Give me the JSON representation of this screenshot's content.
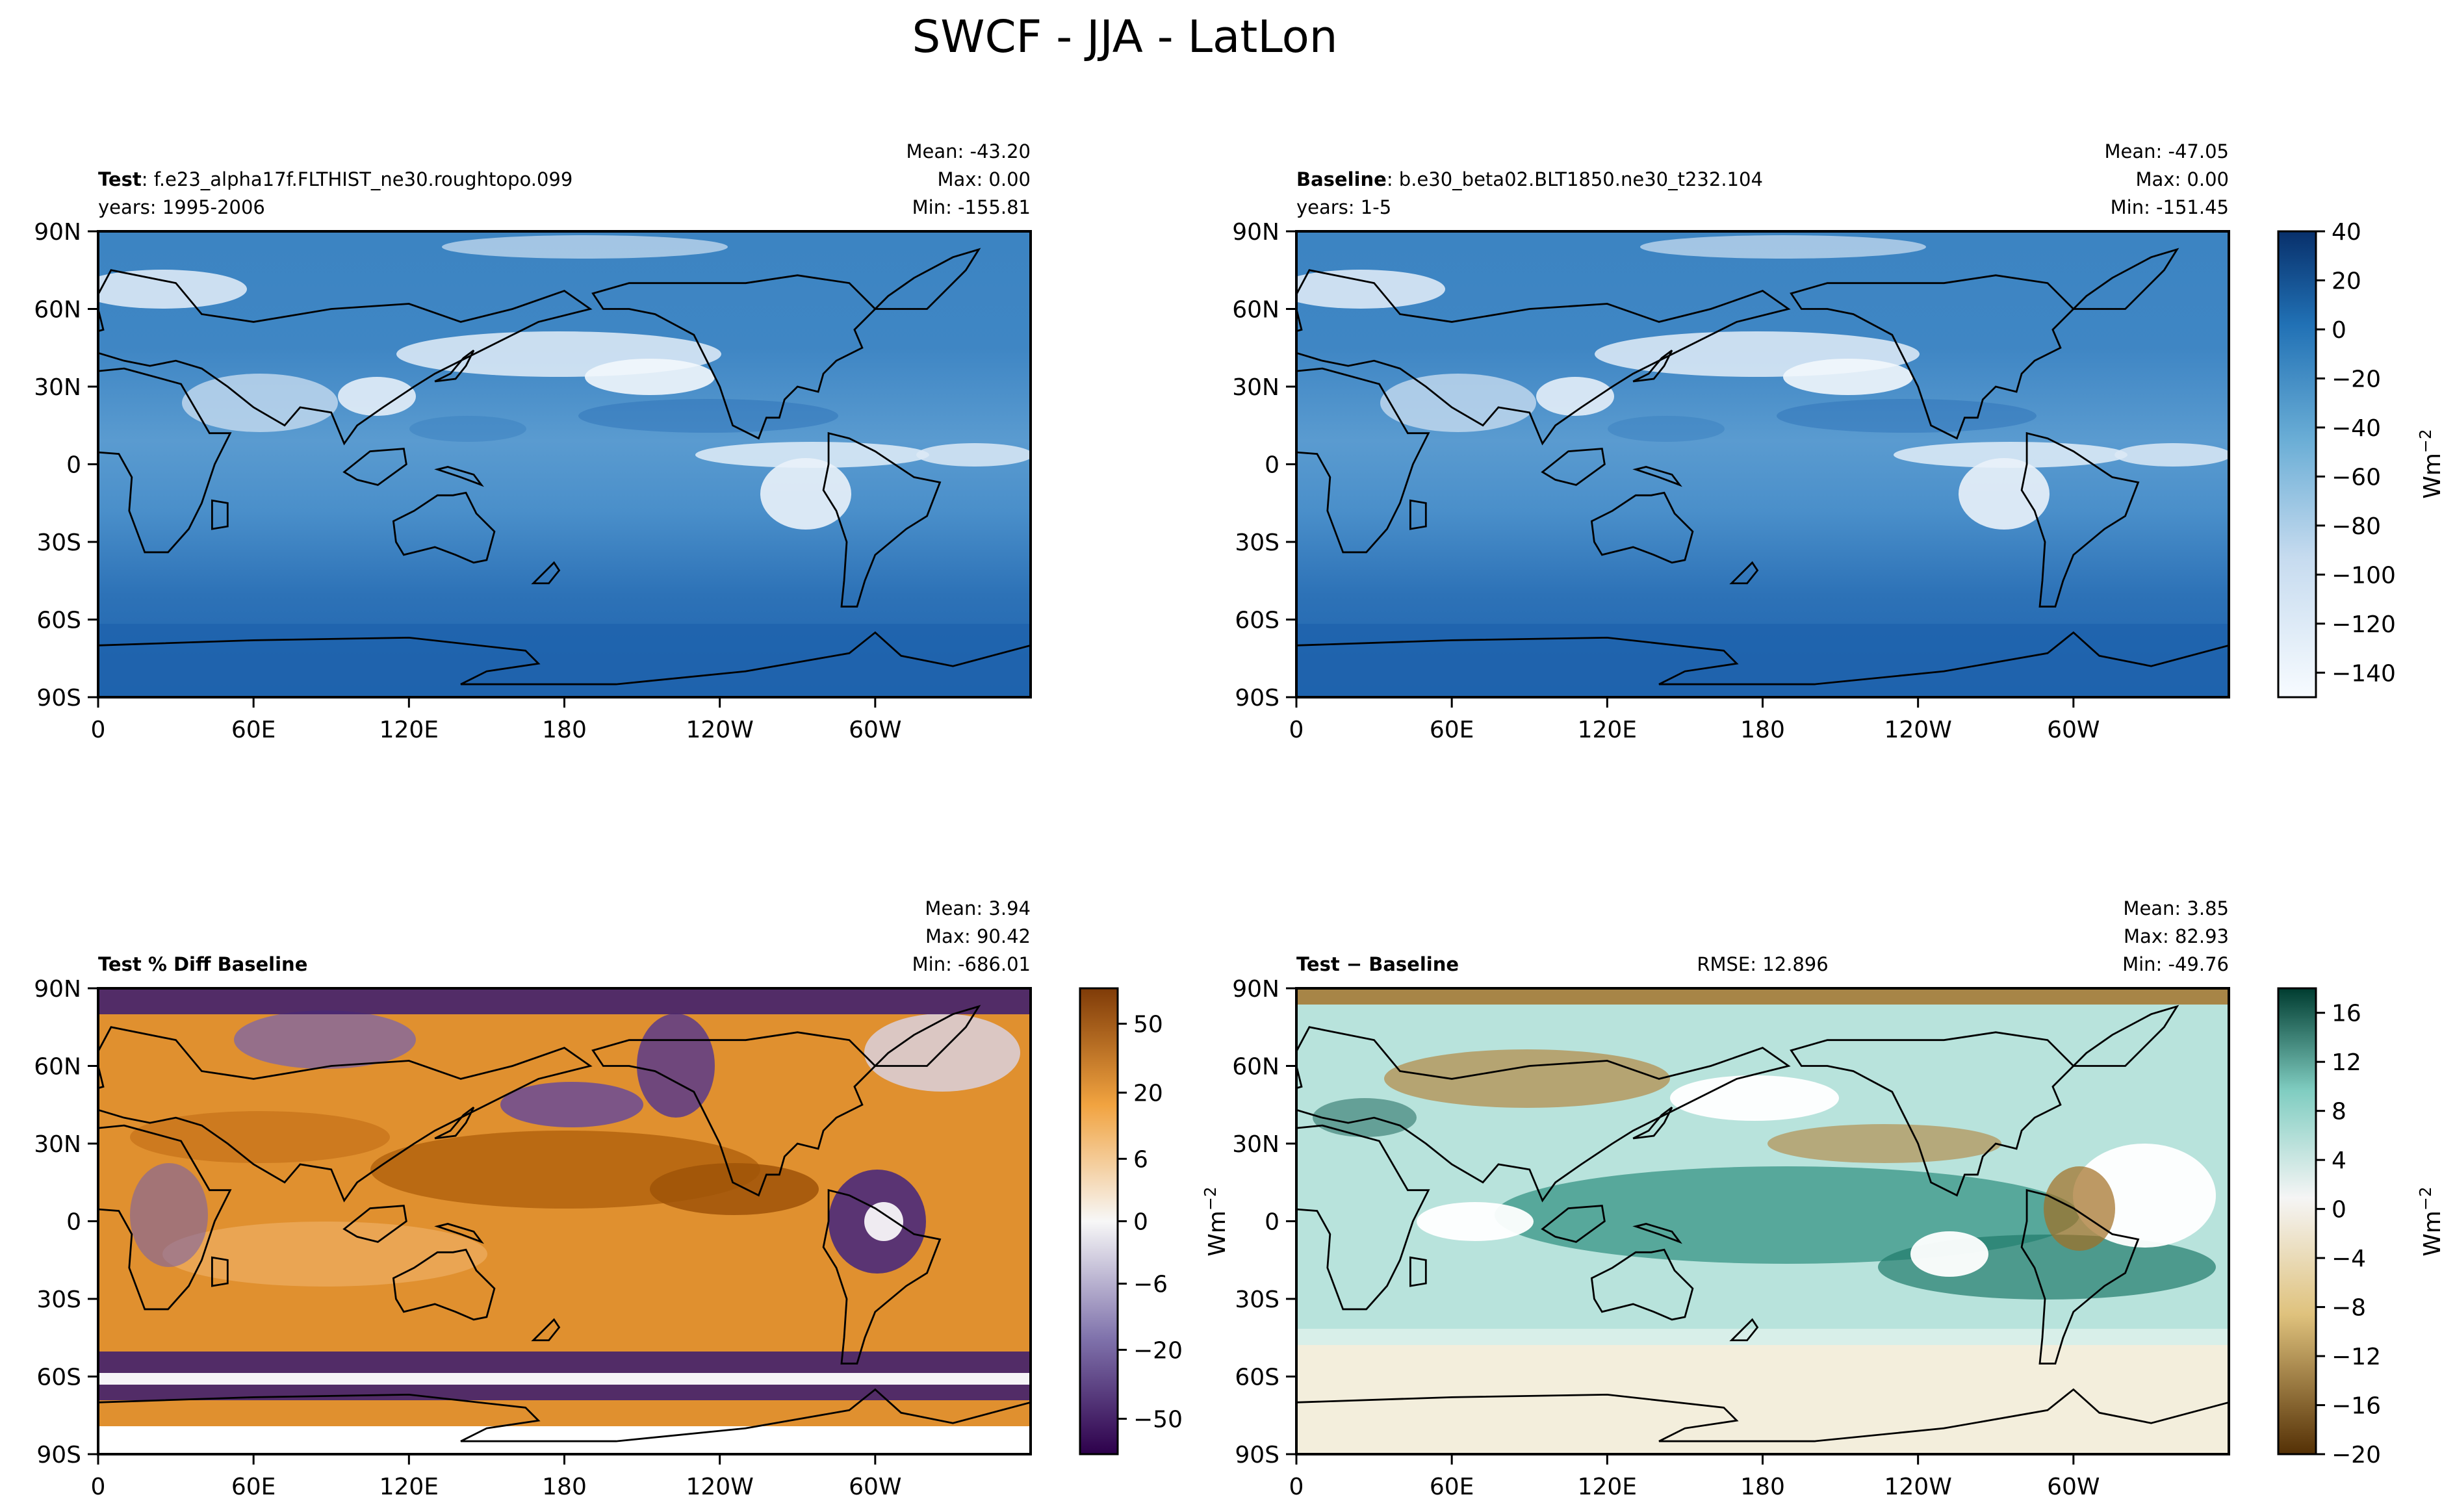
{
  "figure": {
    "title": "SWCF - JJA - LatLon"
  },
  "chart_data": [
    {
      "type": "heatmap",
      "panel": "test",
      "title_bold": "Test",
      "title_rest": ": f.e23_alpha17f.FLTHIST_ne30.roughtopo.099",
      "years": "years: 1995-2006",
      "stats": [
        "Mean: -43.20",
        "Max:  0.00",
        "Min: -155.81"
      ],
      "x_ticks": [
        "0",
        "60E",
        "120E",
        "180",
        "120W",
        "60W"
      ],
      "y_ticks": [
        "90N",
        "60N",
        "30N",
        "0",
        "30S",
        "60S",
        "90S"
      ],
      "xlim": [
        0,
        360
      ],
      "ylim": [
        -90,
        90
      ],
      "colormap": "Blues_r"
    },
    {
      "type": "heatmap",
      "panel": "baseline",
      "title_bold": "Baseline",
      "title_rest": ": b.e30_beta02.BLT1850.ne30_t232.104",
      "years": "years: 1-5",
      "stats": [
        "Mean: -47.05",
        "Max:  0.00",
        "Min: -151.45"
      ],
      "x_ticks": [
        "0",
        "60E",
        "120E",
        "180",
        "120W",
        "60W"
      ],
      "y_ticks": [
        "90N",
        "60N",
        "30N",
        "0",
        "30S",
        "60S",
        "90S"
      ],
      "xlim": [
        0,
        360
      ],
      "ylim": [
        -90,
        90
      ],
      "colormap": "Blues_r",
      "colorbar": {
        "ticks": [
          "40",
          "20",
          "0",
          "−20",
          "−40",
          "−60",
          "−80",
          "−100",
          "−120",
          "−140"
        ],
        "label": "Wm",
        "label_sup": "−2"
      }
    },
    {
      "type": "heatmap",
      "panel": "pct_diff",
      "title_bold": "Test % Diff Baseline",
      "stats": [
        "Mean:  3.94",
        "Max: 90.42",
        "Min: -686.01"
      ],
      "x_ticks": [
        "0",
        "60E",
        "120E",
        "180",
        "120W",
        "60W"
      ],
      "y_ticks": [
        "90N",
        "60N",
        "30N",
        "0",
        "30S",
        "60S",
        "90S"
      ],
      "xlim": [
        0,
        360
      ],
      "ylim": [
        -90,
        90
      ],
      "colormap": "PuOr_r",
      "colorbar": {
        "ticks": [
          "50",
          "20",
          "6",
          "0",
          "−6",
          "−20",
          "−50"
        ]
      }
    },
    {
      "type": "heatmap",
      "panel": "diff",
      "title_bold": "Test − Baseline",
      "rmse": "RMSE: 12.896",
      "stats": [
        "Mean:  3.85",
        "Max: 82.93",
        "Min: -49.76"
      ],
      "x_ticks": [
        "0",
        "60E",
        "120E",
        "180",
        "120W",
        "60W"
      ],
      "y_ticks": [
        "90N",
        "60N",
        "30N",
        "0",
        "30S",
        "60S",
        "90S"
      ],
      "xlim": [
        0,
        360
      ],
      "ylim": [
        -90,
        90
      ],
      "colormap": "BrBG",
      "colorbar": {
        "ticks": [
          "16",
          "12",
          "8",
          "4",
          "0",
          "−4",
          "−8",
          "−12",
          "−16",
          "−20"
        ],
        "label": "Wm",
        "label_sup": "−2"
      },
      "left_axis_label": "Wm",
      "left_axis_label_sup": "−2"
    }
  ],
  "colors": {
    "test_base": "#3f86c4",
    "test_deep": "#1f63ad",
    "test_light": "#d6e6f4",
    "pct_base": "#e09132",
    "pct_deep": "#a7560a",
    "pct_purple": "#6a4b97",
    "pct_purple_deep": "#43216e",
    "diff_base": "#b7e2db",
    "diff_teal": "#2d8f7f",
    "diff_teal_deep": "#0f5e52",
    "diff_brown": "#b27a2c",
    "diff_pale": "#f3eedc"
  }
}
